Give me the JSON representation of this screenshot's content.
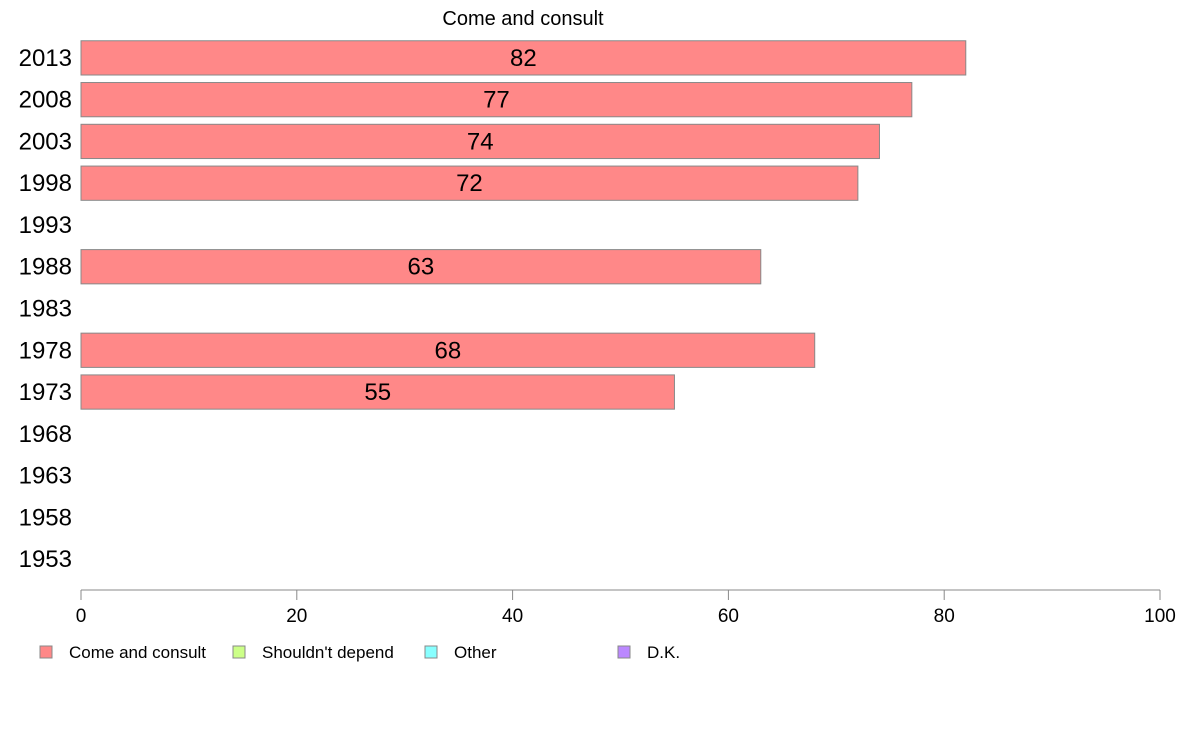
{
  "chart_data": {
    "type": "bar",
    "orientation": "horizontal",
    "title": "Come and consult",
    "categories": [
      "2013",
      "2008",
      "2003",
      "1998",
      "1993",
      "1988",
      "1983",
      "1978",
      "1973",
      "1968",
      "1963",
      "1958",
      "1953"
    ],
    "series": [
      {
        "name": "Come and consult",
        "color": "#ff8888",
        "values": [
          82,
          77,
          74,
          72,
          null,
          63,
          null,
          68,
          55,
          null,
          null,
          null,
          null
        ]
      }
    ],
    "data_labels": [
      "82",
      "77",
      "74",
      "72",
      "",
      "63",
      "",
      "68",
      "55",
      "",
      "",
      "",
      ""
    ],
    "xlim": [
      0,
      100
    ],
    "xticks": [
      0,
      20,
      40,
      60,
      80,
      100
    ],
    "xtick_labels": [
      "0",
      "20",
      "40",
      "60",
      "80",
      "100"
    ],
    "grid": false,
    "legend": {
      "placement": "bottom",
      "entries": [
        {
          "label": "Come and consult",
          "color": "#ff8888"
        },
        {
          "label": "Shouldn't depend",
          "color": "#ccff88"
        },
        {
          "label": "Other",
          "color": "#88ffff"
        },
        {
          "label": "D.K.",
          "color": "#bb88ff"
        }
      ]
    }
  }
}
